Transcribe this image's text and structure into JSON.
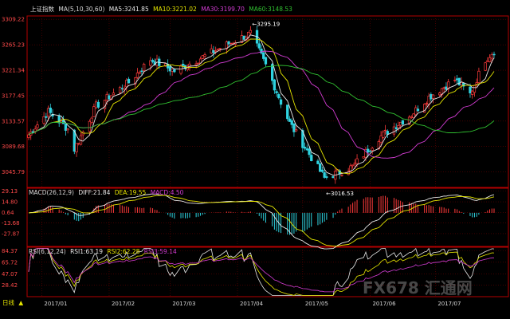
{
  "colors": {
    "background": "#000000",
    "frame": "#b40000",
    "grid": "#6a0000",
    "up": "#ff3b3b",
    "down": "#2fd3e0",
    "ma5": "#e8e8e8",
    "ma10": "#e6e600",
    "ma30": "#d23cd2",
    "ma60": "#30c030",
    "dea": "#e6e600",
    "rsi3": "#d23cd2",
    "axis_text": "#ff4a4a",
    "header_text": "#d8d8d8",
    "annotation": "#ffffff"
  },
  "header": {
    "title": "上证指数",
    "indicator": "MA(5,10,30,60)",
    "ma5": "MA5:3241.85",
    "ma10": "MA10:3221.02",
    "ma30": "MA30:3199.70",
    "ma60": "MA60:3148.53"
  },
  "macd_header": {
    "name": "MACD(26,12,9)",
    "diff": "DIFF:21.84",
    "dea": "DEA:19.55",
    "macd": "MACD:4.50"
  },
  "rsi_header": {
    "name": "RSI(6,12,24)",
    "rsi1": "RSI1:63.19",
    "rsi2": "RSI2:62.28",
    "rsi3": "RSI3:59.14"
  },
  "footer": {
    "period": "日线",
    "arrow": "▲"
  },
  "watermark": "FX678 汇通网",
  "chart_data": [
    {
      "type": "candlestick",
      "title": "上证指数",
      "x_ticks": [
        "2017/01",
        "2017/02",
        "2017/03",
        "2017/04",
        "2017/05",
        "2017/06",
        "2017/07"
      ],
      "y_ticks": [
        "3309.22",
        "3265.23",
        "3221.34",
        "3177.45",
        "3133.57",
        "3089.68",
        "3045.79"
      ],
      "ylim": [
        3019,
        3315
      ],
      "annotations": [
        {
          "text": "3295.19",
          "value": 3295.19,
          "date": "2017/04/07"
        },
        {
          "text": "3016.53",
          "value": 3016.53,
          "date": "2017/05/11"
        }
      ],
      "ohlc_anchors": [
        {
          "date": "2016/12/26",
          "value": 3110
        },
        {
          "date": "2017/01/04",
          "value": 3150
        },
        {
          "date": "2017/01/13",
          "value": 3120
        },
        {
          "date": "2017/01/16",
          "value": 3085
        },
        {
          "date": "2017/01/26",
          "value": 3160
        },
        {
          "date": "2017/02/10",
          "value": 3200
        },
        {
          "date": "2017/02/20",
          "value": 3240
        },
        {
          "date": "2017/03/03",
          "value": 3220
        },
        {
          "date": "2017/03/14",
          "value": 3240
        },
        {
          "date": "2017/03/24",
          "value": 3260
        },
        {
          "date": "2017/04/07",
          "value": 3285
        },
        {
          "date": "2017/04/14",
          "value": 3230
        },
        {
          "date": "2017/04/25",
          "value": 3130
        },
        {
          "date": "2017/05/11",
          "value": 3035
        },
        {
          "date": "2017/05/24",
          "value": 3055
        },
        {
          "date": "2017/06/05",
          "value": 3105
        },
        {
          "date": "2017/06/20",
          "value": 3145
        },
        {
          "date": "2017/06/28",
          "value": 3175
        },
        {
          "date": "2017/07/10",
          "value": 3205
        },
        {
          "date": "2017/07/17",
          "value": 3180
        },
        {
          "date": "2017/07/24",
          "value": 3240
        },
        {
          "date": "2017/07/28",
          "value": 3255
        }
      ],
      "series": [
        {
          "name": "MA5",
          "last": 3241.85
        },
        {
          "name": "MA10",
          "last": 3221.02
        },
        {
          "name": "MA30",
          "last": 3199.7
        },
        {
          "name": "MA60",
          "last": 3148.53
        }
      ]
    },
    {
      "type": "bar",
      "title": "MACD(26,12,9)",
      "y_ticks": [
        "29.13",
        "14.80",
        "0.64",
        "-13.68",
        "-27.87"
      ],
      "ylim": [
        -45,
        33
      ],
      "series": [
        {
          "name": "DIFF",
          "last": 21.84
        },
        {
          "name": "DEA",
          "last": 19.55
        },
        {
          "name": "MACD",
          "last": 4.5
        }
      ]
    },
    {
      "type": "line",
      "title": "RSI(6,12,24)",
      "y_ticks": [
        "84.37",
        "65.72",
        "47.07",
        "28.42"
      ],
      "ylim": [
        10,
        90
      ],
      "series": [
        {
          "name": "RSI1",
          "last": 63.19
        },
        {
          "name": "RSI2",
          "last": 62.28
        },
        {
          "name": "RSI3",
          "last": 59.14
        }
      ]
    }
  ]
}
